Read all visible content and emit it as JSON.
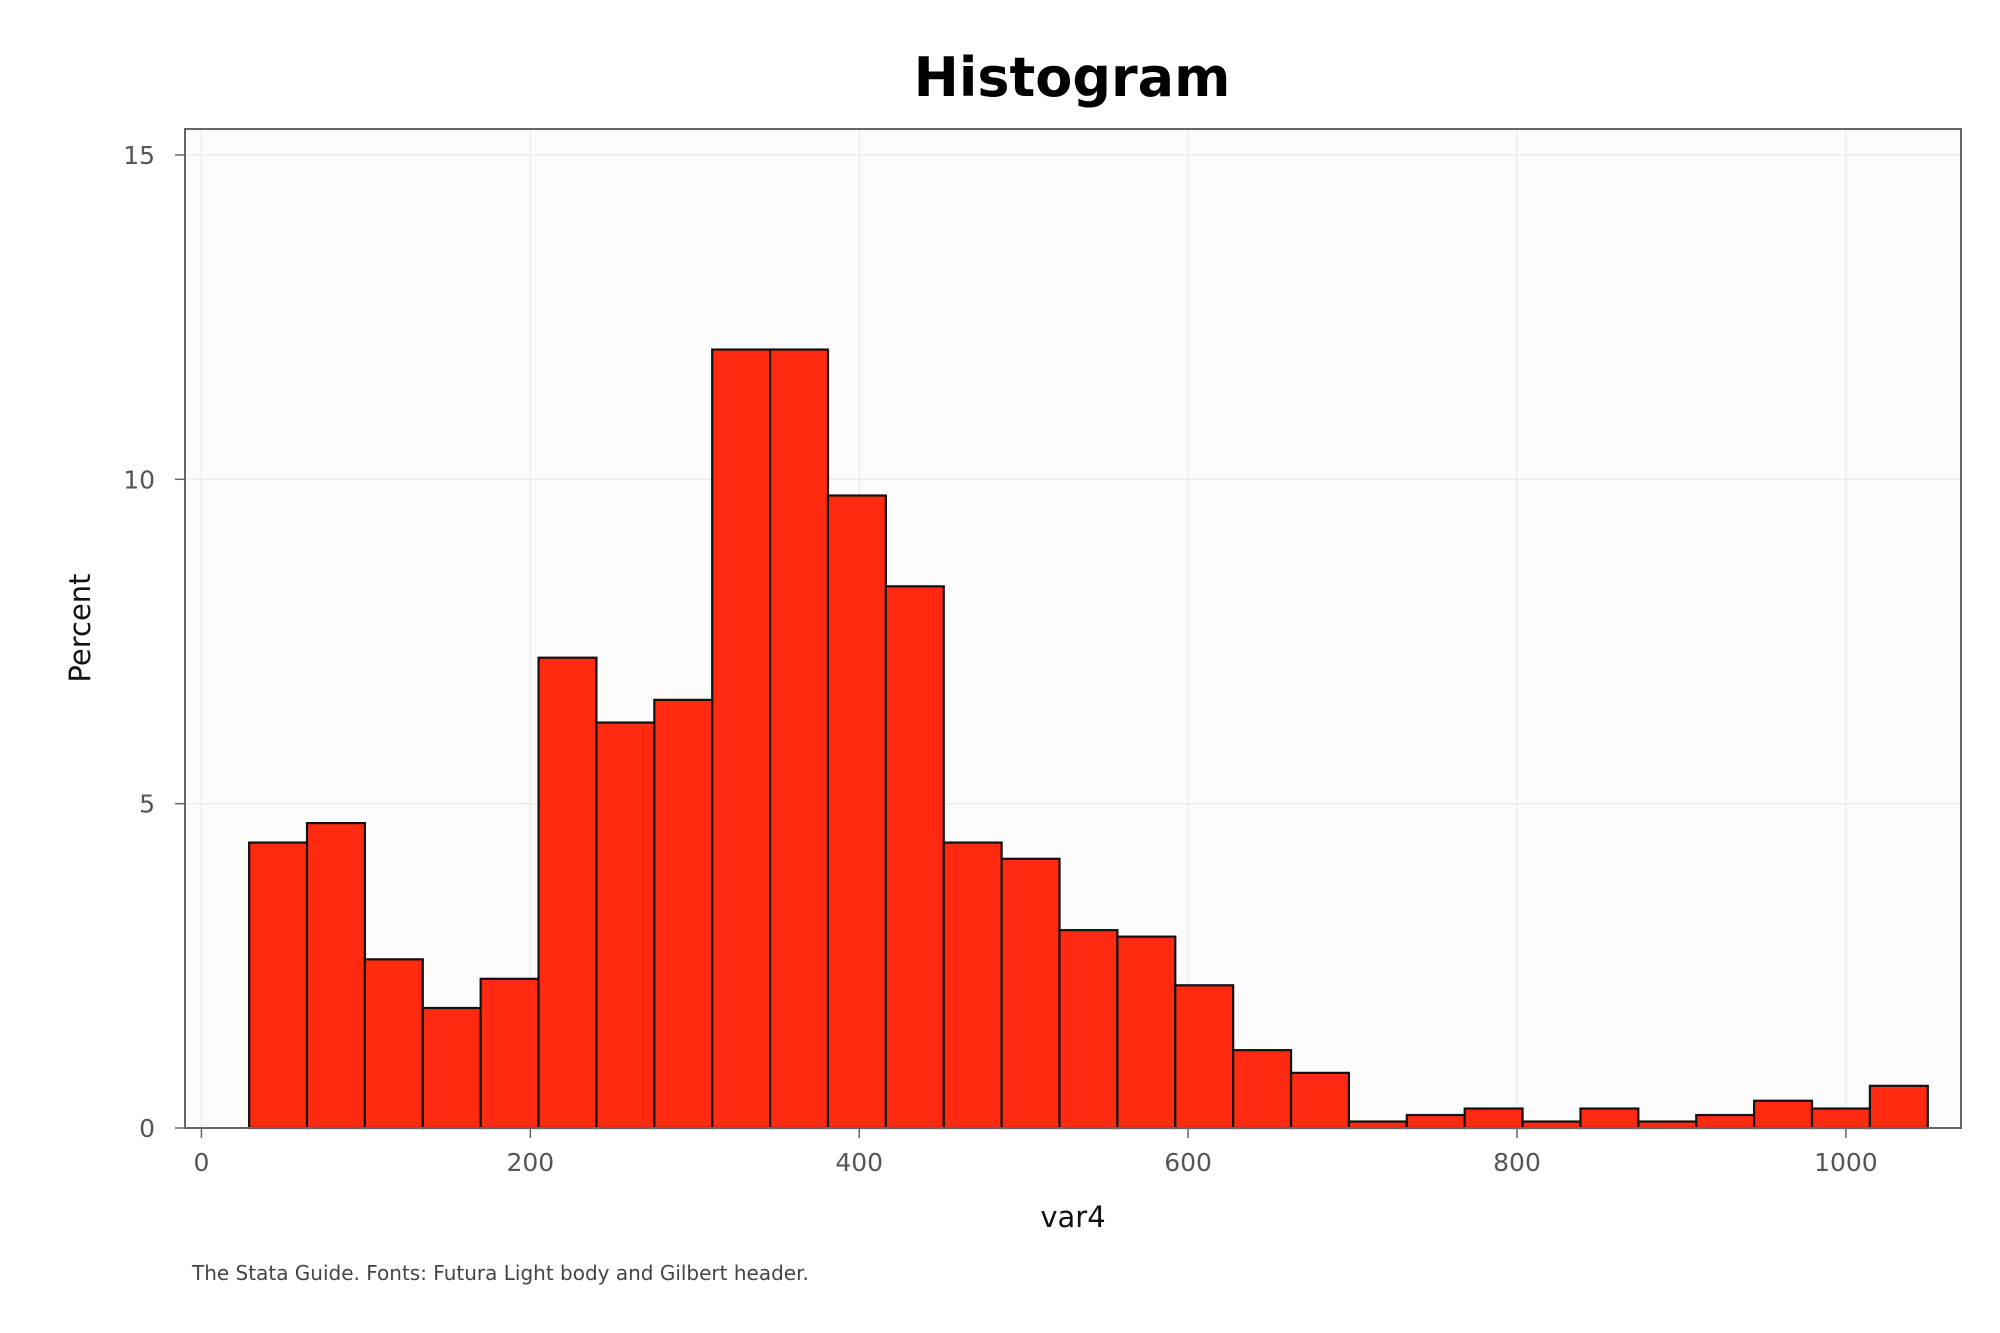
{
  "chart_data": {
    "type": "bar",
    "title": "Histogram",
    "xlabel": "var4",
    "ylabel": "Percent",
    "note": "The Stata Guide. Fonts: Futura Light body and Gilbert header.",
    "xlim": [
      -10,
      1070
    ],
    "ylim": [
      0,
      15.4
    ],
    "xticks": [
      0,
      200,
      400,
      600,
      800,
      1000
    ],
    "yticks": [
      0,
      5,
      10,
      15
    ],
    "grid": true,
    "bin_start": 29,
    "bin_width": 35.2,
    "values": [
      4.4,
      4.7,
      2.6,
      1.85,
      2.3,
      7.25,
      6.25,
      6.6,
      12.0,
      12.0,
      9.75,
      8.35,
      4.4,
      4.15,
      3.05,
      2.95,
      2.2,
      1.2,
      0.85,
      0.1,
      0.2,
      0.3,
      0.1,
      0.3,
      0.1,
      0.2,
      0.42,
      0.3,
      0.65
    ],
    "colors": {
      "bar_fill": "#ff2a10",
      "bar_stroke": "#111111",
      "plot_bg": "#fcfcfc",
      "grid": "#e6e6e6",
      "frame": "#666666"
    }
  }
}
